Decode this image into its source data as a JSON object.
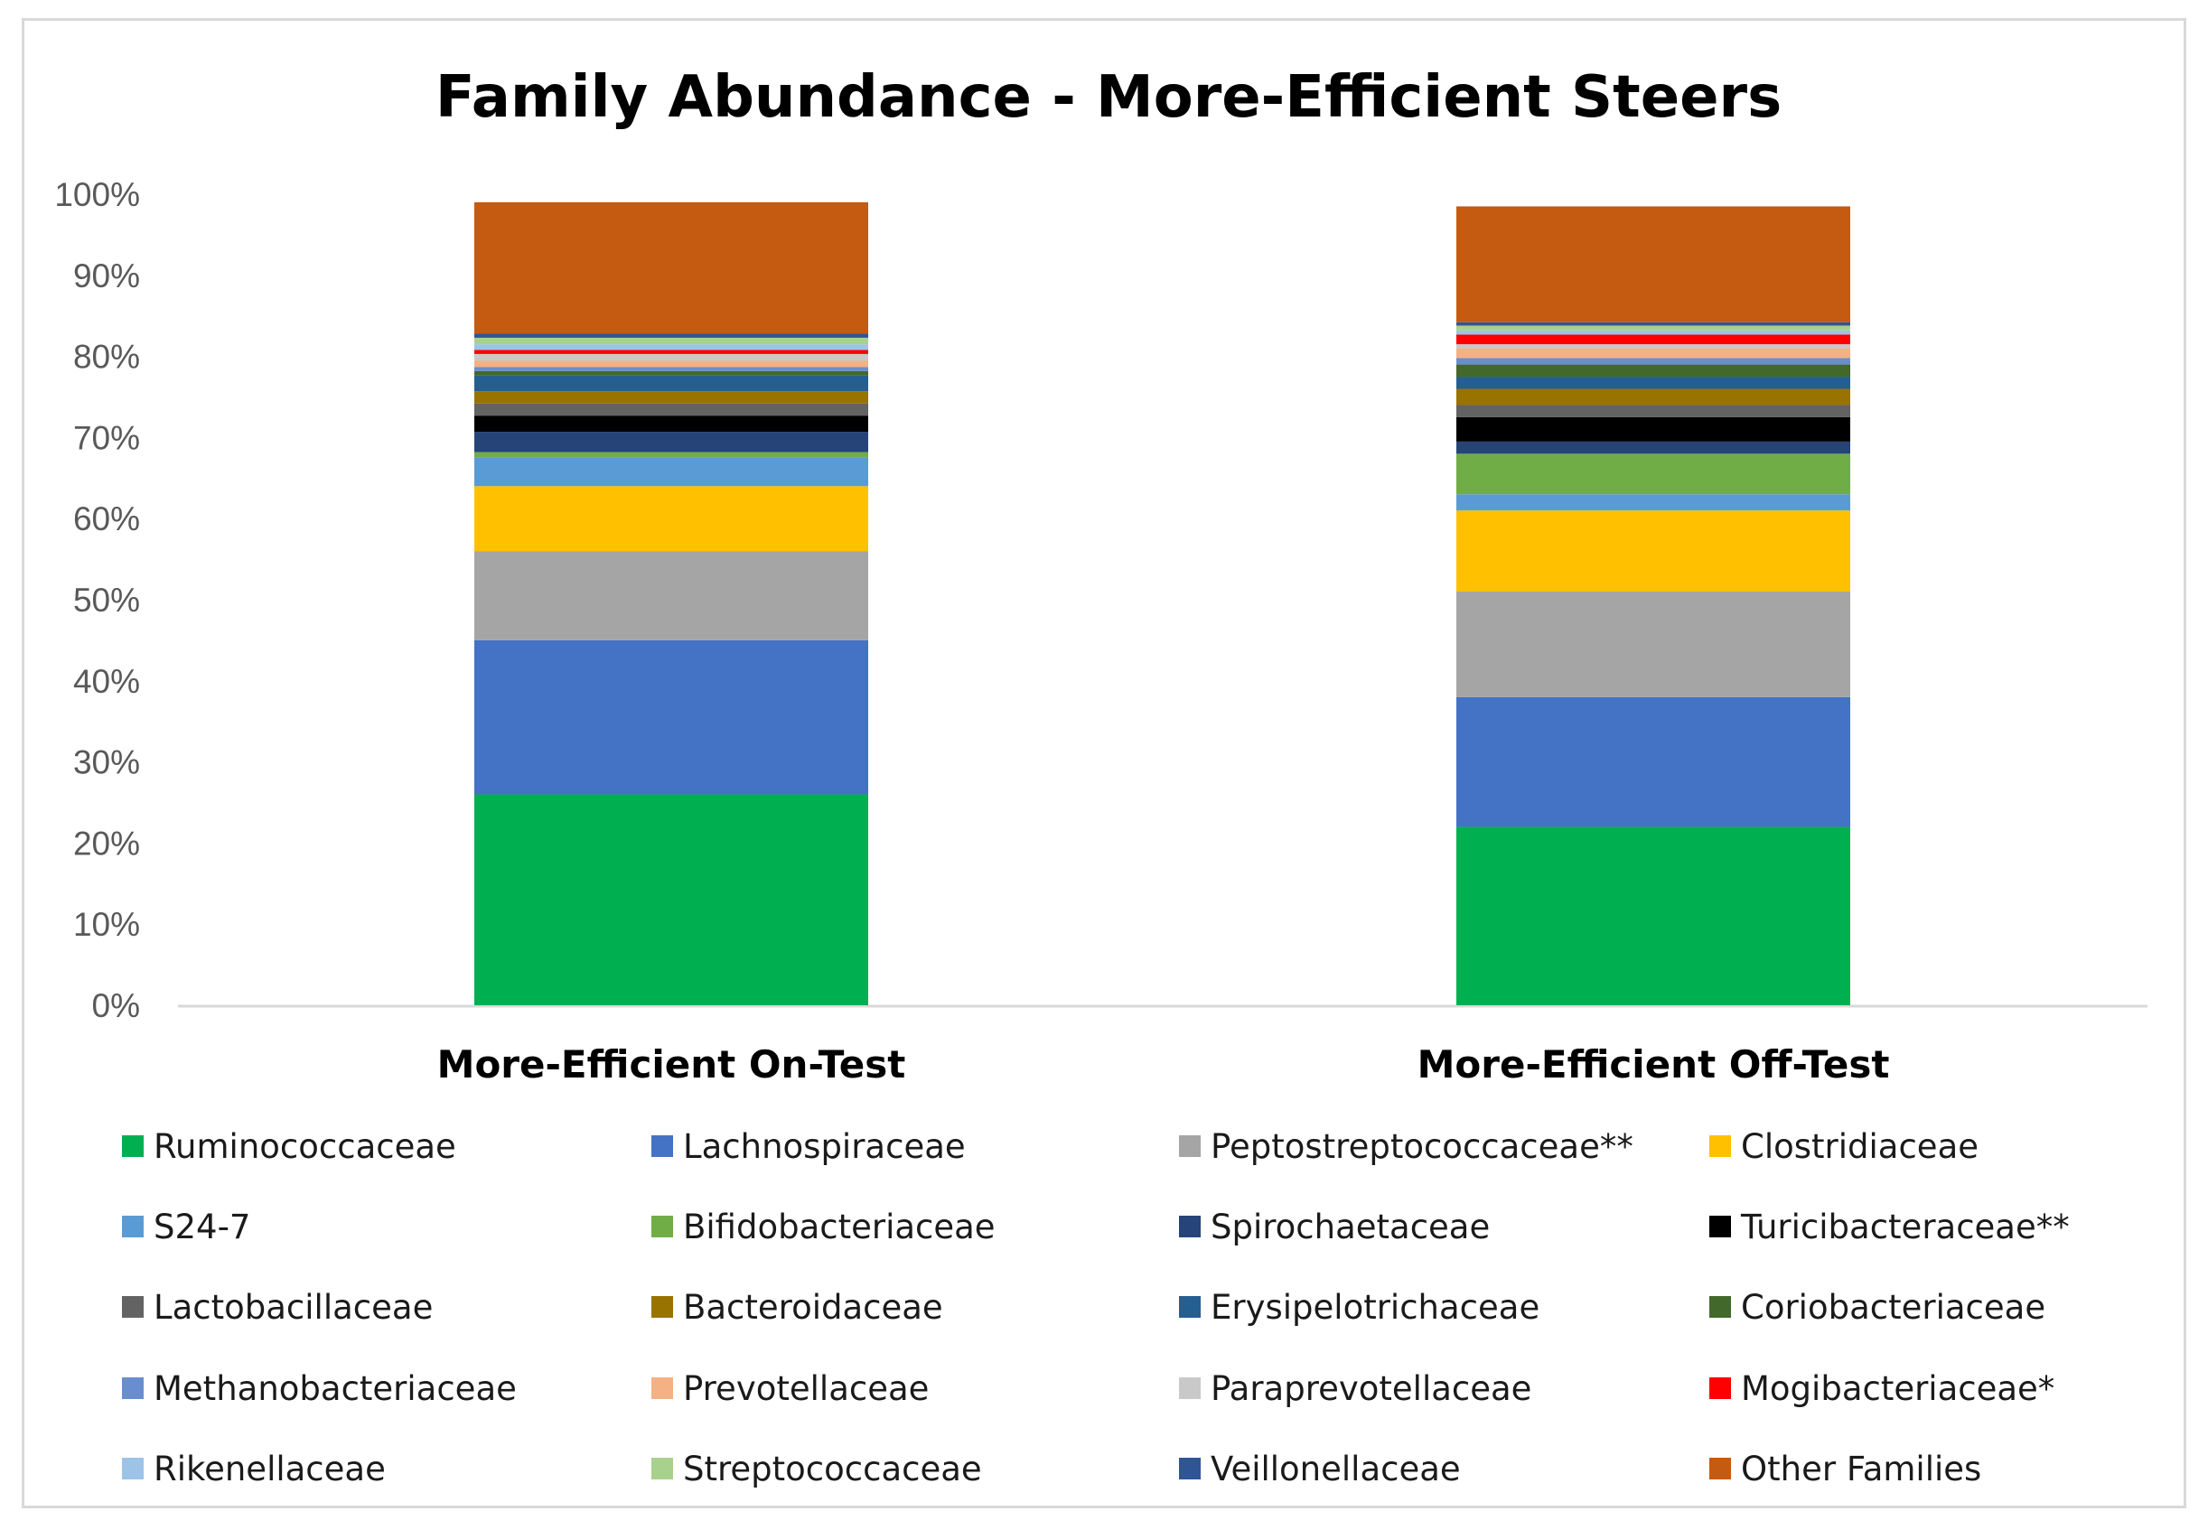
{
  "chart_data": {
    "type": "bar",
    "stacked": true,
    "percent_stacked": true,
    "title": "Family Abundance - More-Efficient Steers",
    "xlabel": "",
    "ylabel": "",
    "ylim": [
      0,
      100
    ],
    "yticks": [
      "0%",
      "10%",
      "20%",
      "30%",
      "40%",
      "50%",
      "60%",
      "70%",
      "80%",
      "90%",
      "100%"
    ],
    "legend_position": "bottom",
    "categories": [
      "More-Efficient On-Test",
      "More-Efficient Off-Test"
    ],
    "series": [
      {
        "name": "Ruminococcaceae",
        "color": "#00B050",
        "values": [
          26.0,
          22.0
        ]
      },
      {
        "name": "Lachnospiraceae",
        "color": "#4472C4",
        "values": [
          19.0,
          16.0
        ]
      },
      {
        "name": "Peptostreptococcaceae**",
        "color": "#A5A5A5",
        "values": [
          11.0,
          13.0
        ]
      },
      {
        "name": "Clostridiaceae",
        "color": "#FFC000",
        "values": [
          8.0,
          10.0
        ]
      },
      {
        "name": "S24-7",
        "color": "#5B9BD5",
        "values": [
          3.5,
          2.0
        ]
      },
      {
        "name": "Bifidobacteriaceae",
        "color": "#70AD47",
        "values": [
          0.7,
          5.0
        ]
      },
      {
        "name": "Spirochaetaceae",
        "color": "#264478",
        "values": [
          2.5,
          1.5
        ]
      },
      {
        "name": "Turicibacteraceae**",
        "color": "#000000",
        "values": [
          2.0,
          3.0
        ]
      },
      {
        "name": "Lactobacillaceae",
        "color": "#636363",
        "values": [
          1.5,
          1.5
        ]
      },
      {
        "name": "Bacteroidaceae",
        "color": "#997300",
        "values": [
          1.5,
          2.0
        ]
      },
      {
        "name": "Erysipelotrichaceae",
        "color": "#255E91",
        "values": [
          2.0,
          1.5
        ]
      },
      {
        "name": "Coriobacteriaceae",
        "color": "#43682B",
        "values": [
          0.5,
          1.5
        ]
      },
      {
        "name": "Methanobacteriaceae",
        "color": "#698ED0",
        "values": [
          0.5,
          0.8
        ]
      },
      {
        "name": "Prevotellaceae",
        "color": "#F4B183",
        "values": [
          0.8,
          1.2
        ]
      },
      {
        "name": "Paraprevotellaceae",
        "color": "#C9C9C9",
        "values": [
          0.8,
          0.5
        ]
      },
      {
        "name": "Mogibacteriaceae*",
        "color": "#FF0000",
        "values": [
          0.5,
          1.2
        ]
      },
      {
        "name": "Rikenellaceae",
        "color": "#9DC3E6",
        "values": [
          0.7,
          0.5
        ]
      },
      {
        "name": "Streptococcaceae",
        "color": "#A9D18E",
        "values": [
          0.8,
          0.6
        ]
      },
      {
        "name": "Veillonellaceae",
        "color": "#2F5597",
        "values": [
          0.5,
          0.4
        ]
      },
      {
        "name": "Other Families",
        "color": "#C55A11",
        "values": [
          16.2,
          14.3
        ]
      }
    ]
  }
}
